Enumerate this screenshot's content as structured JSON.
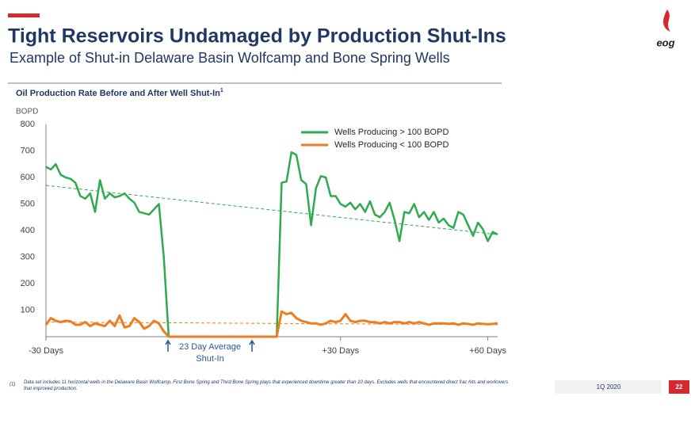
{
  "slide": {
    "title": "Tight Reservoirs Undamaged by Production Shut-Ins",
    "subtitle": "Example of Shut-in Delaware Basin Wolfcamp and Bone Spring Wells",
    "logo": "eog",
    "footnote_marker": "(1)",
    "footnote": "Data set includes 11 horizontal wells in the Delaware Basin Wolfcamp, First Bone Spring and Third Bone Spring plays that experienced downtime greater than 10 days.  Excludes wells that encountered direct frac hits and workovers that improved production.",
    "period": "1Q 2020",
    "page": "22"
  },
  "chart_data": {
    "type": "line",
    "title": "Oil Production Rate Before and After Well Shut-In",
    "title_note": "1",
    "y_label": "BOPD",
    "annotation": [
      "23 Day Average",
      "Shut-In"
    ],
    "x": [
      -30,
      -29,
      -28,
      -27,
      -26,
      -25,
      -24,
      -23,
      -22,
      -21,
      -20,
      -19,
      -18,
      -17,
      -16,
      -15,
      -14,
      -13,
      -12,
      -11,
      -10,
      -9,
      -8,
      -7,
      -6,
      -5,
      -4,
      -3,
      -2,
      -1,
      0,
      1,
      2,
      3,
      4,
      5,
      6,
      7,
      8,
      9,
      10,
      11,
      12,
      13,
      14,
      15,
      16,
      17,
      18,
      19,
      20,
      21,
      22,
      23,
      24,
      25,
      26,
      27,
      28,
      29,
      30,
      31,
      32,
      33,
      34,
      35,
      36,
      37,
      38,
      39,
      40,
      41,
      42,
      43,
      44,
      45,
      46,
      47,
      48,
      49,
      50,
      51,
      52,
      53,
      54,
      55,
      56,
      57,
      58,
      59,
      60,
      61,
      62
    ],
    "xlim": [
      -30,
      62
    ],
    "xticks": [
      {
        "value": -30,
        "label": "-30 Days"
      },
      {
        "value": 30,
        "label": "+30 Days"
      },
      {
        "value": 60,
        "label": "+60 Days"
      }
    ],
    "ylim": [
      0,
      800
    ],
    "yticks": [
      100,
      200,
      300,
      400,
      500,
      600,
      700,
      800
    ],
    "grid": false,
    "legend": "top-right",
    "series": [
      {
        "name": "Wells Producing > 100 BOPD",
        "color": "#2eaa4f",
        "values": [
          640,
          630,
          650,
          610,
          600,
          595,
          580,
          530,
          520,
          540,
          470,
          590,
          520,
          540,
          525,
          530,
          540,
          520,
          505,
          470,
          465,
          460,
          480,
          500,
          300,
          0,
          0,
          0,
          0,
          0,
          0,
          0,
          0,
          0,
          0,
          0,
          0,
          0,
          0,
          0,
          0,
          0,
          0,
          0,
          0,
          0,
          0,
          0,
          580,
          585,
          695,
          685,
          590,
          575,
          420,
          560,
          605,
          600,
          530,
          530,
          500,
          490,
          505,
          480,
          500,
          470,
          510,
          460,
          450,
          470,
          505,
          440,
          360,
          470,
          465,
          500,
          450,
          470,
          440,
          470,
          430,
          445,
          420,
          410,
          470,
          460,
          420,
          380,
          430,
          405,
          360,
          395,
          385
        ]
      },
      {
        "name": "Wells Producing < 100 BOPD",
        "color": "#ee7d22",
        "values": [
          45,
          70,
          60,
          55,
          60,
          58,
          45,
          45,
          55,
          40,
          50,
          45,
          40,
          60,
          40,
          80,
          35,
          40,
          70,
          55,
          30,
          40,
          60,
          50,
          20,
          0,
          0,
          0,
          0,
          0,
          0,
          0,
          0,
          0,
          0,
          0,
          0,
          0,
          0,
          0,
          0,
          0,
          0,
          0,
          0,
          0,
          0,
          0,
          95,
          85,
          90,
          70,
          60,
          55,
          50,
          50,
          45,
          50,
          60,
          55,
          60,
          85,
          60,
          55,
          60,
          60,
          55,
          55,
          50,
          55,
          50,
          55,
          55,
          50,
          55,
          50,
          55,
          50,
          45,
          50,
          50,
          50,
          48,
          50,
          45,
          50,
          48,
          45,
          50,
          48,
          47,
          48,
          50
        ]
      }
    ],
    "trendlines": [
      {
        "color": "#2eaa4f",
        "x": [
          -30,
          62
        ],
        "values": [
          570,
          385
        ]
      },
      {
        "color": "#ee7d22",
        "x": [
          -30,
          62
        ],
        "values": [
          55,
          45
        ]
      }
    ]
  }
}
